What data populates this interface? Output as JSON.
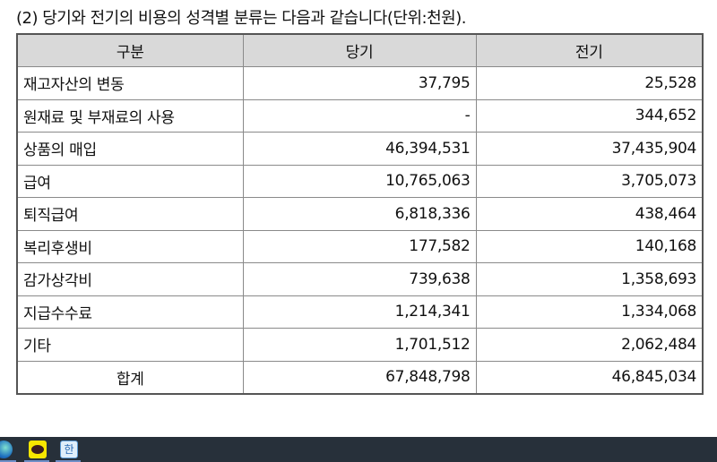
{
  "title": "(2) 당기와 전기의 비용의 성격별 분류는 다음과 같습니다(단위:천원).",
  "table": {
    "headers": [
      "구분",
      "당기",
      "전기"
    ],
    "rows": [
      {
        "label": "재고자산의 변동",
        "current": "37,795",
        "prior": "25,528"
      },
      {
        "label": "원재료 및 부재료의 사용",
        "current": "-",
        "prior": "344,652"
      },
      {
        "label": "상품의 매입",
        "current": "46,394,531",
        "prior": "37,435,904"
      },
      {
        "label": "급여",
        "current": "10,765,063",
        "prior": "3,705,073"
      },
      {
        "label": "퇴직급여",
        "current": "6,818,336",
        "prior": "438,464"
      },
      {
        "label": "복리후생비",
        "current": "177,582",
        "prior": "140,168"
      },
      {
        "label": "감가상각비",
        "current": "739,638",
        "prior": "1,358,693"
      },
      {
        "label": "지급수수료",
        "current": "1,214,341",
        "prior": "1,334,068"
      },
      {
        "label": "기타",
        "current": "1,701,512",
        "prior": "2,062,484"
      }
    ],
    "total": {
      "label": "합계",
      "current": "67,848,798",
      "prior": "46,845,034"
    }
  },
  "taskbar": {
    "icons": [
      "edge-browser-icon",
      "kakaotalk-icon",
      "hangul-word-processor-icon"
    ],
    "kakaotalk_logo_text": "TALK",
    "hangul_logo_text": "한"
  }
}
